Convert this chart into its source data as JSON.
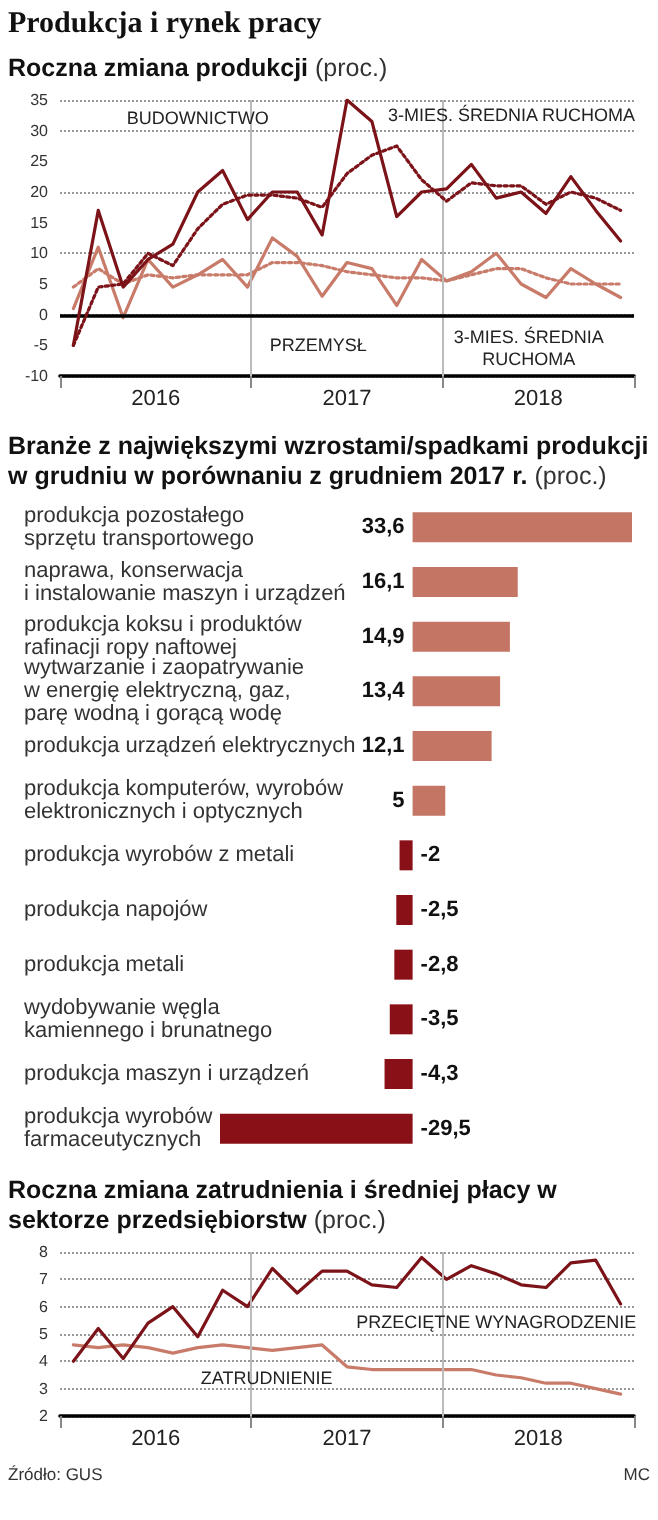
{
  "chart_data": [
    {
      "type": "line",
      "title": "Produkcja i rynek pracy",
      "subtitle": "Roczna zmiana produkcji",
      "ylabel": "(proc.)",
      "x": [
        2016.07,
        2016.2,
        2016.33,
        2016.46,
        2016.59,
        2016.72,
        2016.85,
        2016.98,
        2017.11,
        2017.24,
        2017.37,
        2017.5,
        2017.63,
        2017.76,
        2017.89,
        2018.02,
        2018.15,
        2018.28,
        2018.41,
        2018.54,
        2018.67,
        2018.8,
        2018.93
      ],
      "xlim": [
        2016,
        2019
      ],
      "xticks": [
        {
          "value": 2016,
          "label": null
        },
        {
          "value": 2016.5,
          "label": "2016"
        },
        {
          "value": 2017,
          "label": null
        },
        {
          "value": 2017.5,
          "label": "2017"
        },
        {
          "value": 2018,
          "label": null
        },
        {
          "value": 2018.5,
          "label": "2018"
        },
        {
          "value": 2019,
          "label": null
        }
      ],
      "ylim": [
        -10,
        35
      ],
      "yticks": [
        -10,
        -5,
        0,
        5,
        10,
        15,
        20,
        25,
        30,
        35
      ],
      "grid": "y",
      "series": [
        {
          "color": "#c97b6a",
          "line_style": "dotted",
          "values": [
            4.5,
            7.5,
            5,
            6.5,
            6,
            6.5,
            6.5,
            6.5,
            8.5,
            8.5,
            8,
            7,
            6.5,
            6,
            6,
            5.5,
            6.5,
            7.5,
            7.5,
            6,
            5,
            5,
            5
          ]
        },
        {
          "color": "#c97b6a",
          "line_style": "solid",
          "values": [
            1,
            11,
            -0.5,
            9,
            4.5,
            6.5,
            9,
            4.5,
            12.5,
            9.5,
            3,
            8.5,
            7.5,
            1.5,
            9,
            5.5,
            7,
            10,
            5,
            2.8,
            7.5,
            5,
            2.8
          ]
        },
        {
          "color": "#7b1319",
          "line_style": "dotted",
          "values": [
            -5,
            4.5,
            5,
            10,
            8,
            14,
            18,
            19.5,
            19.5,
            19,
            17.5,
            23,
            26,
            27.5,
            22,
            18.5,
            21.5,
            21,
            21,
            18,
            20,
            19,
            17
          ]
        },
        {
          "color": "#7b1319",
          "line_style": "solid",
          "values": [
            -5,
            17,
            4.5,
            9,
            11.5,
            20,
            23.5,
            15.5,
            20,
            20,
            13,
            35,
            31.5,
            16,
            20,
            20.5,
            24.5,
            19,
            20,
            16.5,
            22.5,
            17,
            12
          ]
        }
      ],
      "ref_lines": [
        {
          "axis": "x",
          "value": 2017,
          "color": "#bbbbbb"
        },
        {
          "axis": "x",
          "value": 2018,
          "color": "#bbbbbb"
        },
        {
          "axis": "y",
          "value": 0,
          "color": "#000000"
        }
      ],
      "annotations": [
        "BUDOWNICTWO",
        "3-MIES. ŚREDNIA RUCHOMA",
        "PRZEMYSŁ",
        "3-MIES. ŚREDNIA\nRUCHOMA"
      ]
    },
    {
      "type": "bar",
      "orientation": "horizontal",
      "title": "Branże z największymi wzrostami/spadkami produkcji w grudniu w porównaniu z grudniem 2017 r.",
      "ylabel": "(proc.)",
      "categories": [
        "produkcja pozostałego\nsprzętu transportowego",
        "naprawa, konserwacja\ni instalowanie maszyn i urządzeń",
        "produkcja koksu i produktów\nrafinacji ropy naftowej",
        "wytwarzanie i zaopatrywanie\nw energię elektryczną, gaz,\nparę wodną i gorącą wodę",
        "produkcja urządzeń elektrycznych",
        "produkcja komputerów, wyrobów\nelektronicznych i optycznych",
        "produkcja wyrobów z metali",
        "produkcja napojów",
        "produkcja metali",
        "wydobywanie węgla\nkamiennego i brunatnego",
        "produkcja maszyn i urządzeń",
        "produkcja wyrobów\nfarmaceutycznych"
      ],
      "values": [
        33.6,
        16.1,
        14.9,
        13.4,
        12.1,
        5,
        -2,
        -2.5,
        -2.8,
        -3.5,
        -4.3,
        -29.5
      ],
      "value_labels": [
        "33,6",
        "16,1",
        "14,9",
        "13,4",
        "12,1",
        "5",
        "-2",
        "-2,5",
        "-2,8",
        "-3,5",
        "-4,3",
        "-29,5"
      ],
      "colors": [
        "#c47563",
        "#c47563",
        "#c47563",
        "#c47563",
        "#c47563",
        "#c47563",
        "#8a1017",
        "#8a1017",
        "#8a1017",
        "#8a1017",
        "#8a1017",
        "#8a1017"
      ]
    },
    {
      "type": "line",
      "title": "Roczna zmiana zatrudnienia i średniej płacy w sektorze przedsiębiorstw",
      "ylabel": "(proc.)",
      "x": [
        2016.07,
        2016.2,
        2016.33,
        2016.46,
        2016.59,
        2016.72,
        2016.85,
        2016.98,
        2017.11,
        2017.24,
        2017.37,
        2017.5,
        2017.63,
        2017.76,
        2017.89,
        2018.02,
        2018.15,
        2018.28,
        2018.41,
        2018.54,
        2018.67,
        2018.8,
        2018.93
      ],
      "xlim": [
        2016,
        2019
      ],
      "xticks": [
        {
          "value": 2016,
          "label": null
        },
        {
          "value": 2016.5,
          "label": "2016"
        },
        {
          "value": 2017,
          "label": null
        },
        {
          "value": 2017.5,
          "label": "2017"
        },
        {
          "value": 2018,
          "label": null
        },
        {
          "value": 2018.5,
          "label": "2018"
        },
        {
          "value": 2019,
          "label": null
        }
      ],
      "ylim": [
        2,
        8
      ],
      "yticks": [
        2,
        3,
        4,
        5,
        6,
        7,
        8
      ],
      "grid": "y",
      "series": [
        {
          "color": "#c97b6a",
          "line_style": "solid",
          "values": [
            4.6,
            4.5,
            4.6,
            4.5,
            4.3,
            4.5,
            4.6,
            4.5,
            4.4,
            4.5,
            4.6,
            3.8,
            3.7,
            3.7,
            3.7,
            3.7,
            3.7,
            3.5,
            3.4,
            3.2,
            3.2,
            3.0,
            2.8
          ]
        },
        {
          "color": "#7b1319",
          "line_style": "solid",
          "values": [
            4,
            5.2,
            4.1,
            5.4,
            6,
            4.9,
            6.6,
            6,
            7.4,
            6.5,
            7.3,
            7.3,
            6.8,
            6.7,
            7.8,
            7,
            7.5,
            7.2,
            6.8,
            6.7,
            7.6,
            7.7,
            6.1
          ]
        }
      ],
      "ref_lines": [
        {
          "axis": "x",
          "value": 2017,
          "color": "#bbbbbb"
        },
        {
          "axis": "x",
          "value": 2018,
          "color": "#bbbbbb"
        }
      ],
      "annotations": [
        "PRZECIĘTNE WYNAGRODZENIE",
        "ZATRUDNIENIE",
        "Źródło: GUS",
        "MC"
      ]
    }
  ]
}
